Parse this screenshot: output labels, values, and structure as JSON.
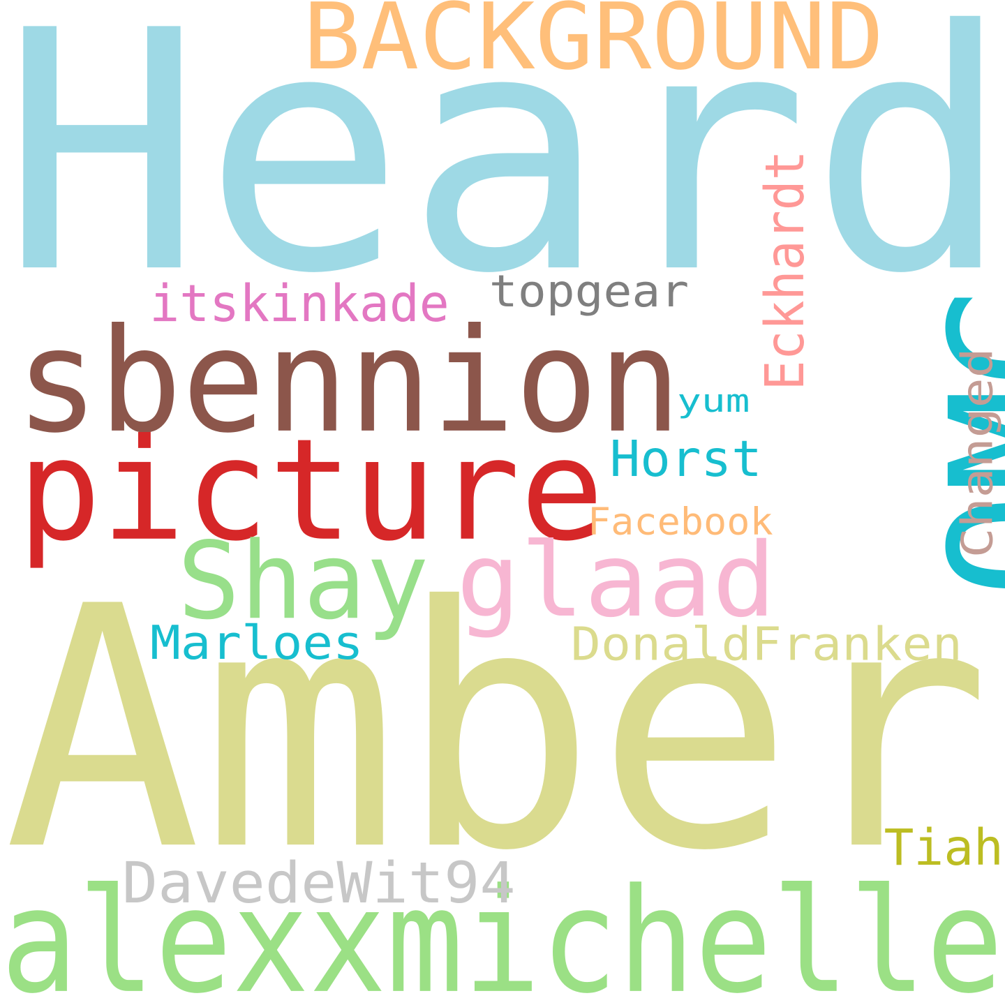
{
  "words": [
    {
      "text": "Heard",
      "color": "#9ED9E5"
    },
    {
      "text": "Amber",
      "color": "#DADB8F"
    },
    {
      "text": "alexxmichelle",
      "color": "#9BE085"
    },
    {
      "text": "sbennion",
      "color": "#8C564B"
    },
    {
      "text": "picture",
      "color": "#D62728"
    },
    {
      "text": "OMG",
      "color": "#17BECF"
    },
    {
      "text": "BACKGROUND",
      "color": "#FFBF7A"
    },
    {
      "text": "glaad",
      "color": "#F7B6D2"
    },
    {
      "text": "Shay",
      "color": "#98DF8A"
    },
    {
      "text": "DavedeWit94",
      "color": "#C7C7C7"
    },
    {
      "text": "DonaldFranken",
      "color": "#DBDB8D"
    },
    {
      "text": "Marloes",
      "color": "#17BECF"
    },
    {
      "text": "itskinkade",
      "color": "#E377C2"
    },
    {
      "text": "topgear",
      "color": "#7F7F7F"
    },
    {
      "text": "Eckhardt",
      "color": "#FF9896"
    },
    {
      "text": "Changed",
      "color": "#C49C94"
    },
    {
      "text": "Horst",
      "color": "#17BECF"
    },
    {
      "text": "Facebook",
      "color": "#FFBB78"
    },
    {
      "text": "Tiah",
      "color": "#BCBD22"
    },
    {
      "text": "yum",
      "color": "#17BECF"
    }
  ]
}
